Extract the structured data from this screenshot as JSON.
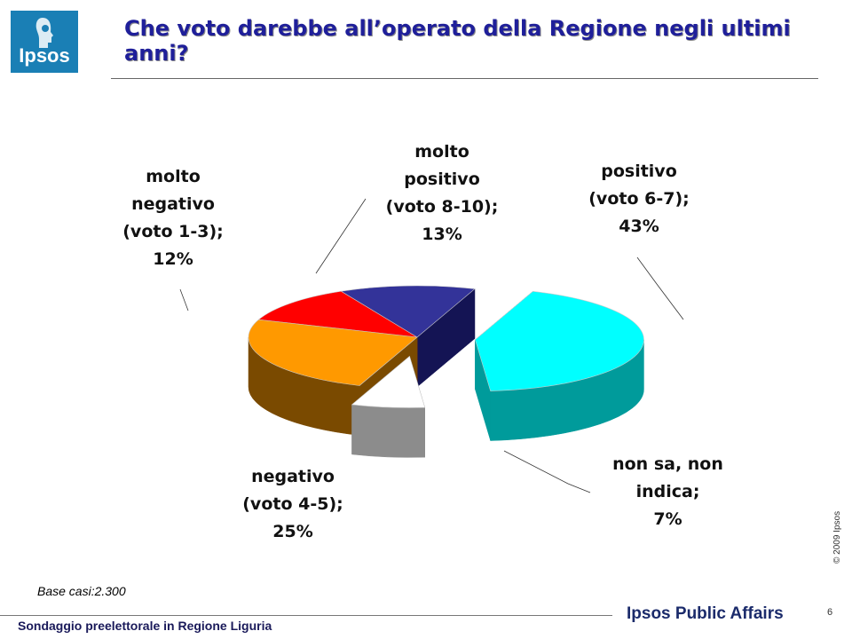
{
  "logo": {
    "text": "Ipsos"
  },
  "title": "Che voto darebbe all’operato della Regione negli ultimi anni?",
  "chart_data": {
    "type": "pie",
    "title": "Che voto darebbe all’operato della Regione negli ultimi anni?",
    "three_d": true,
    "slices": [
      {
        "label": [
          "positivo",
          "(voto 6-7);",
          "43%"
        ],
        "value": 43,
        "color": "#00ffff",
        "side_color": "#009b9b",
        "exploded": true
      },
      {
        "label": [
          "non sa, non",
          "indica;",
          "7%"
        ],
        "value": 7,
        "color": "#ffffff",
        "side_color": "#8c8c8c",
        "exploded": true
      },
      {
        "label": [
          "negativo",
          "(voto 4-5);",
          "25%"
        ],
        "value": 25,
        "color": "#ff9900",
        "side_color": "#7a4a00",
        "exploded": false
      },
      {
        "label": [
          "molto",
          "negativo",
          "(voto 1-3);",
          "12%"
        ],
        "value": 12,
        "color": "#ff0000",
        "side_color": "#8b0000",
        "exploded": false
      },
      {
        "label": [
          "molto",
          "positivo",
          "(voto 8-10);",
          "13%"
        ],
        "value": 13,
        "color": "#333399",
        "side_color": "#141454",
        "exploded": false
      }
    ]
  },
  "base_note": "Base casi:2.300",
  "copyright": "© 2009 Ipsos",
  "page_number": "6",
  "footer_left": "Sondaggio preelettorale in Regione Liguria",
  "footer_right": "Ipsos Public Affairs"
}
